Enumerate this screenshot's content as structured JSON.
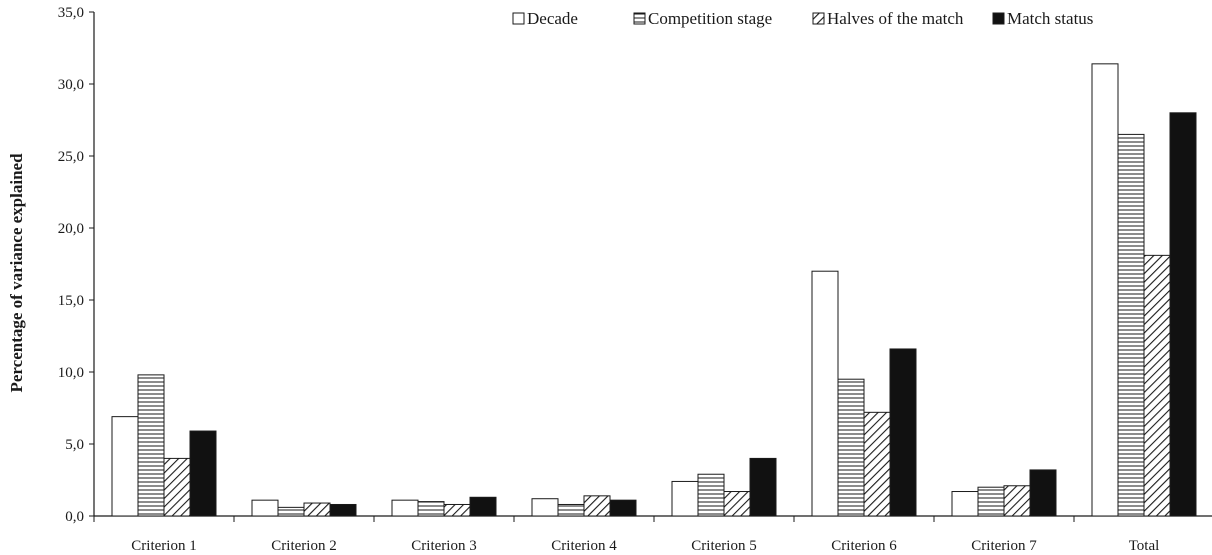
{
  "chart_data": {
    "type": "bar",
    "title": "",
    "xlabel": "",
    "ylabel": "Percentage of variance explained",
    "ylim": [
      0,
      35
    ],
    "yticks": [
      "0,0",
      "5,0",
      "10,0",
      "15,0",
      "20,0",
      "25,0",
      "30,0",
      "35,0"
    ],
    "grid": false,
    "legend_position": "top-right",
    "categories": [
      "Criterion 1",
      "Criterion 2",
      "Criterion 3",
      "Criterion 4",
      "Criterion 5",
      "Criterion 6",
      "Criterion 7",
      "Total"
    ],
    "series": [
      {
        "name": "Decade",
        "pattern": "white",
        "values": [
          6.9,
          1.1,
          1.1,
          1.2,
          2.4,
          17.0,
          1.7,
          31.4
        ]
      },
      {
        "name": "Competition stage",
        "pattern": "horizontal-lines",
        "values": [
          9.8,
          0.6,
          1.0,
          0.8,
          2.9,
          9.5,
          2.0,
          26.5
        ]
      },
      {
        "name": "Halves of the match",
        "pattern": "diagonal-lines",
        "values": [
          4.0,
          0.9,
          0.8,
          1.4,
          1.7,
          7.2,
          2.1,
          18.1
        ]
      },
      {
        "name": "Match status",
        "pattern": "black",
        "values": [
          5.9,
          0.8,
          1.3,
          1.1,
          4.0,
          11.6,
          3.2,
          28.0
        ]
      }
    ]
  },
  "colors": {
    "axis": "#1a1a1a",
    "bar_stroke": "#1a1a1a",
    "fill_white": "#ffffff",
    "fill_black": "#111111"
  }
}
